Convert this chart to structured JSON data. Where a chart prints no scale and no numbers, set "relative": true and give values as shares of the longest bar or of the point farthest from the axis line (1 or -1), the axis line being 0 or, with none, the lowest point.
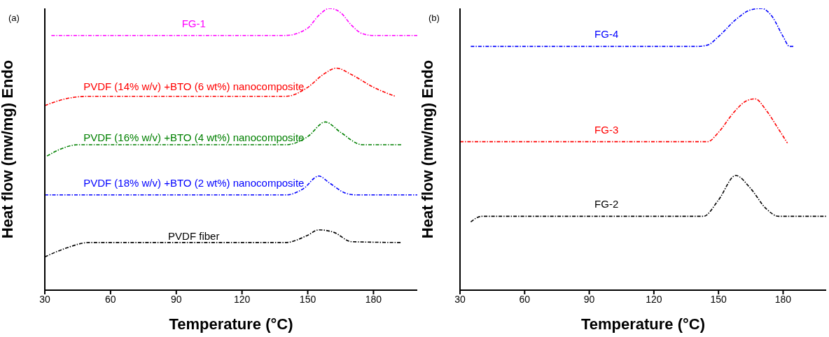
{
  "chart_data": [
    {
      "type": "line",
      "relative": true,
      "xlabel": "Temperature (°C)",
      "ylabel": "Heat flow (mw/mg) Endo",
      "xlim": [
        30,
        200
      ],
      "xticks": [
        30,
        60,
        90,
        120,
        150,
        180
      ],
      "line_style": "dashed",
      "annotations": [
        "(a)"
      ],
      "series": [
        {
          "name": "FG-1",
          "color": "#ff00ff",
          "x": [
            33,
            140,
            150,
            155,
            160,
            165,
            170,
            175,
            180,
            200
          ],
          "values": [
            0.904,
            0.904,
            0.93,
            0.975,
            1.0,
            0.985,
            0.94,
            0.91,
            0.904,
            0.904
          ]
        },
        {
          "name": "PVDF (14% w/v) +BTO (6 wt%) nanocomposite",
          "color": "#ff0000",
          "x": [
            30,
            40,
            50,
            140,
            150,
            157,
            163,
            170,
            180,
            190
          ],
          "values": [
            0.655,
            0.68,
            0.688,
            0.688,
            0.72,
            0.765,
            0.788,
            0.765,
            0.72,
            0.688
          ]
        },
        {
          "name": "PVDF (16% w/v) +BTO (4 wt%) nanocomposite",
          "color": "#008000",
          "x": [
            31,
            37,
            45,
            140,
            150,
            158,
            165,
            175,
            193
          ],
          "values": [
            0.476,
            0.5,
            0.516,
            0.516,
            0.545,
            0.597,
            0.56,
            0.516,
            0.516
          ]
        },
        {
          "name": "PVDF (18% w/v) +BTO (2 wt%) nanocomposite",
          "color": "#0000ff",
          "x": [
            30,
            140,
            148,
            155,
            160,
            167,
            172,
            200
          ],
          "values": [
            0.338,
            0.338,
            0.36,
            0.405,
            0.38,
            0.345,
            0.338,
            0.338
          ]
        },
        {
          "name": "PVDF fiber",
          "color": "#000000",
          "x": [
            30,
            40,
            50,
            140,
            150,
            155,
            162,
            170,
            193
          ],
          "values": [
            0.118,
            0.15,
            0.169,
            0.169,
            0.195,
            0.214,
            0.205,
            0.172,
            0.169
          ]
        }
      ]
    },
    {
      "type": "line",
      "relative": true,
      "xlabel": "Temperature (°C)",
      "ylabel": "Heat flow (mw/mg) Endo",
      "xlim": [
        30,
        200
      ],
      "xticks": [
        30,
        60,
        90,
        120,
        150,
        180
      ],
      "line_style": "dashed",
      "annotations": [
        "(b)"
      ],
      "series": [
        {
          "name": "FG-4",
          "color": "#0000ff",
          "x": [
            35,
            140,
            145,
            150,
            158,
            165,
            170,
            175,
            180,
            183,
            185
          ],
          "values": [
            0.865,
            0.865,
            0.87,
            0.9,
            0.96,
            0.995,
            1.0,
            0.97,
            0.9,
            0.865,
            0.865
          ]
        },
        {
          "name": "FG-3",
          "color": "#ff0000",
          "x": [
            30,
            145,
            150,
            157,
            163,
            167,
            172,
            178,
            182
          ],
          "values": [
            0.527,
            0.527,
            0.56,
            0.63,
            0.672,
            0.679,
            0.64,
            0.57,
            0.522
          ]
        },
        {
          "name": "FG-2",
          "color": "#000000",
          "x": [
            35,
            40,
            90,
            143,
            150,
            158,
            165,
            172,
            178,
            200
          ],
          "values": [
            0.242,
            0.262,
            0.262,
            0.262,
            0.32,
            0.407,
            0.36,
            0.29,
            0.262,
            0.262
          ]
        }
      ]
    }
  ]
}
